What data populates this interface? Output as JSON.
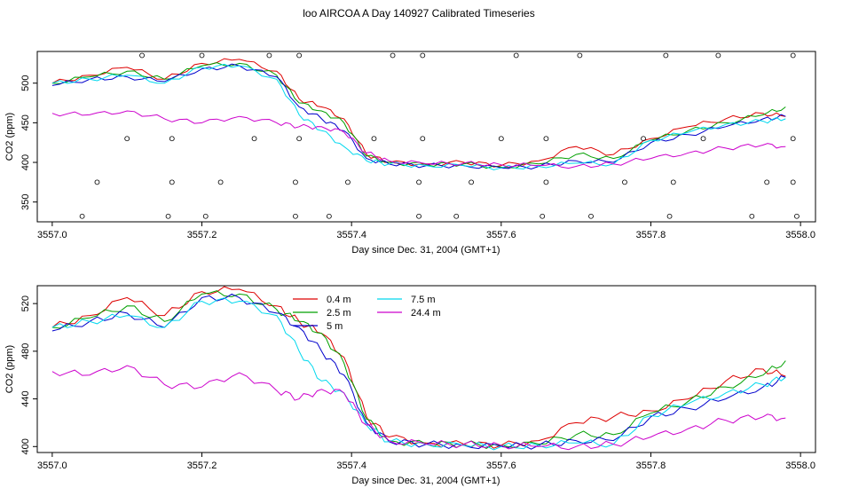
{
  "page_title": "loo AIRCOA A  Day 140927  Calibrated Timeseries",
  "colors": {
    "0.4 m": "#dd0000",
    "2.5 m": "#00a000",
    "5 m": "#0000cc",
    "7.5 m": "#00d8ee",
    "24.4 m": "#cc00cc",
    "axis": "#000000"
  },
  "chart_data": [
    {
      "type": "line",
      "title": "loo AIRCOA A  Day 140927  Calibrated Timeseries",
      "xlabel": "Day since Dec. 31, 2004 (GMT+1)",
      "ylabel": "CO2 (ppm)",
      "xlim": [
        3556.98,
        3558.02
      ],
      "ylim": [
        325,
        540
      ],
      "xticks": [
        "3557.0",
        "3557.2",
        "3557.4",
        "3557.6",
        "3557.8",
        "3558.0"
      ],
      "yticks": [
        "350",
        "400",
        "450",
        "500"
      ],
      "grid": false,
      "legend": "none",
      "series": [
        {
          "name": "0.4 m",
          "x": [
            3557.0,
            3557.05,
            3557.1,
            3557.15,
            3557.2,
            3557.25,
            3557.3,
            3557.33,
            3557.36,
            3557.39,
            3557.42,
            3557.45,
            3557.5,
            3557.55,
            3557.6,
            3557.65,
            3557.7,
            3557.75,
            3557.8,
            3557.85,
            3557.9,
            3557.95,
            3557.98
          ],
          "y": [
            500,
            510,
            520,
            505,
            525,
            530,
            515,
            480,
            470,
            455,
            410,
            400,
            398,
            400,
            396,
            402,
            420,
            410,
            430,
            445,
            455,
            462,
            458
          ]
        },
        {
          "name": "2.5 m",
          "x": [
            3557.0,
            3557.05,
            3557.1,
            3557.15,
            3557.2,
            3557.25,
            3557.3,
            3557.33,
            3557.36,
            3557.39,
            3557.42,
            3557.45,
            3557.5,
            3557.55,
            3557.6,
            3557.65,
            3557.7,
            3557.75,
            3557.8,
            3557.85,
            3557.9,
            3557.95,
            3557.98
          ],
          "y": [
            500,
            508,
            515,
            505,
            522,
            525,
            510,
            475,
            465,
            450,
            408,
            400,
            397,
            398,
            394,
            398,
            410,
            405,
            428,
            440,
            450,
            460,
            470
          ]
        },
        {
          "name": "5 m",
          "x": [
            3557.0,
            3557.05,
            3557.1,
            3557.15,
            3557.2,
            3557.25,
            3557.3,
            3557.33,
            3557.36,
            3557.39,
            3557.42,
            3557.45,
            3557.5,
            3557.55,
            3557.6,
            3557.65,
            3557.7,
            3557.75,
            3557.8,
            3557.85,
            3557.9,
            3557.95,
            3557.98
          ],
          "y": [
            497,
            505,
            508,
            502,
            518,
            522,
            508,
            470,
            455,
            440,
            405,
            398,
            396,
            396,
            393,
            395,
            402,
            400,
            425,
            435,
            445,
            455,
            458
          ]
        },
        {
          "name": "7.5 m",
          "x": [
            3557.0,
            3557.05,
            3557.1,
            3557.15,
            3557.2,
            3557.25,
            3557.3,
            3557.33,
            3557.36,
            3557.39,
            3557.42,
            3557.45,
            3557.5,
            3557.55,
            3557.6,
            3557.65,
            3557.7,
            3557.75,
            3557.8,
            3557.85,
            3557.9,
            3557.95,
            3557.98
          ],
          "y": [
            500,
            505,
            510,
            500,
            520,
            522,
            505,
            460,
            440,
            420,
            402,
            398,
            396,
            396,
            393,
            395,
            399,
            398,
            428,
            438,
            448,
            452,
            455
          ]
        },
        {
          "name": "24.4 m",
          "x": [
            3557.0,
            3557.05,
            3557.1,
            3557.15,
            3557.2,
            3557.25,
            3557.3,
            3557.33,
            3557.36,
            3557.39,
            3557.42,
            3557.45,
            3557.5,
            3557.55,
            3557.6,
            3557.65,
            3557.7,
            3557.75,
            3557.8,
            3557.85,
            3557.9,
            3557.95,
            3557.98
          ],
          "y": [
            462,
            460,
            465,
            455,
            450,
            458,
            450,
            445,
            445,
            438,
            412,
            402,
            398,
            399,
            397,
            396,
            395,
            398,
            405,
            412,
            418,
            422,
            420
          ]
        }
      ],
      "markers": {
        "symbol": "open-circle",
        "x": [
          3557.04,
          3557.06,
          3557.1,
          3557.12,
          3557.155,
          3557.16,
          3557.16,
          3557.2,
          3557.205,
          3557.225,
          3557.27,
          3557.29,
          3557.325,
          3557.325,
          3557.33,
          3557.33,
          3557.37,
          3557.395,
          3557.43,
          3557.455,
          3557.49,
          3557.49,
          3557.495,
          3557.495,
          3557.54,
          3557.56,
          3557.6,
          3557.62,
          3557.655,
          3557.66,
          3557.66,
          3557.705,
          3557.72,
          3557.765,
          3557.79,
          3557.82,
          3557.825,
          3557.83,
          3557.87,
          3557.89,
          3557.935,
          3557.955,
          3557.99,
          3557.99,
          3557.99,
          3557.995
        ],
        "y": [
          332,
          375,
          430,
          535,
          332,
          375,
          430,
          535,
          332,
          375,
          430,
          535,
          332,
          375,
          430,
          535,
          332,
          375,
          430,
          535,
          332,
          375,
          430,
          535,
          332,
          375,
          430,
          535,
          332,
          375,
          430,
          535,
          332,
          375,
          430,
          535,
          332,
          375,
          430,
          535,
          332,
          375,
          430,
          535,
          375,
          332
        ]
      }
    },
    {
      "type": "line",
      "xlabel": "Day since Dec. 31, 2004 (GMT+1)",
      "ylabel": "CO2 (ppm)",
      "xlim": [
        3556.98,
        3558.02
      ],
      "ylim": [
        395,
        535
      ],
      "xticks": [
        "3557.0",
        "3557.2",
        "3557.4",
        "3557.6",
        "3557.8",
        "3558.0"
      ],
      "yticks": [
        "400",
        "440",
        "480",
        "520"
      ],
      "grid": false,
      "legend": "top-center",
      "series": [
        {
          "name": "0.4 m",
          "x": [
            3557.0,
            3557.05,
            3557.1,
            3557.15,
            3557.2,
            3557.25,
            3557.3,
            3557.33,
            3557.36,
            3557.39,
            3557.42,
            3557.45,
            3557.5,
            3557.55,
            3557.6,
            3557.65,
            3557.7,
            3557.75,
            3557.8,
            3557.85,
            3557.9,
            3557.95,
            3557.98
          ],
          "y": [
            500,
            510,
            525,
            510,
            530,
            532,
            518,
            505,
            495,
            475,
            425,
            408,
            403,
            402,
            401,
            405,
            420,
            425,
            430,
            440,
            455,
            465,
            459
          ]
        },
        {
          "name": "2.5 m",
          "x": [
            3557.0,
            3557.05,
            3557.1,
            3557.15,
            3557.2,
            3557.25,
            3557.3,
            3557.33,
            3557.36,
            3557.39,
            3557.42,
            3557.45,
            3557.5,
            3557.55,
            3557.6,
            3557.65,
            3557.7,
            3557.75,
            3557.8,
            3557.85,
            3557.9,
            3557.95,
            3557.98
          ],
          "y": [
            500,
            508,
            518,
            505,
            528,
            528,
            515,
            505,
            495,
            470,
            423,
            405,
            402,
            402,
            401,
            402,
            410,
            410,
            428,
            438,
            450,
            460,
            472
          ]
        },
        {
          "name": "5 m",
          "x": [
            3557.0,
            3557.05,
            3557.1,
            3557.15,
            3557.2,
            3557.25,
            3557.3,
            3557.33,
            3557.36,
            3557.39,
            3557.42,
            3557.45,
            3557.5,
            3557.55,
            3557.6,
            3557.65,
            3557.7,
            3557.75,
            3557.8,
            3557.85,
            3557.9,
            3557.95,
            3557.98
          ],
          "y": [
            497,
            505,
            512,
            500,
            525,
            525,
            512,
            500,
            480,
            460,
            420,
            404,
            402,
            401,
            400,
            401,
            405,
            405,
            425,
            432,
            440,
            450,
            458
          ]
        },
        {
          "name": "7.5 m",
          "x": [
            3557.0,
            3557.05,
            3557.1,
            3557.15,
            3557.2,
            3557.25,
            3557.3,
            3557.33,
            3557.36,
            3557.39,
            3557.42,
            3557.45,
            3557.5,
            3557.55,
            3557.6,
            3557.65,
            3557.7,
            3557.75,
            3557.8,
            3557.85,
            3557.9,
            3557.95,
            3557.98
          ],
          "y": [
            500,
            505,
            510,
            500,
            522,
            522,
            510,
            480,
            455,
            445,
            418,
            404,
            402,
            401,
            400,
            401,
            403,
            402,
            426,
            436,
            445,
            452,
            458
          ]
        },
        {
          "name": "24.4 m",
          "x": [
            3557.0,
            3557.05,
            3557.1,
            3557.15,
            3557.2,
            3557.25,
            3557.3,
            3557.33,
            3557.36,
            3557.39,
            3557.42,
            3557.45,
            3557.5,
            3557.55,
            3557.6,
            3557.65,
            3557.7,
            3557.75,
            3557.8,
            3557.85,
            3557.9,
            3557.95,
            3557.98
          ],
          "y": [
            463,
            460,
            468,
            452,
            450,
            462,
            447,
            440,
            448,
            445,
            418,
            405,
            402,
            402,
            401,
            400,
            400,
            402,
            408,
            415,
            422,
            425,
            424
          ]
        }
      ]
    }
  ]
}
